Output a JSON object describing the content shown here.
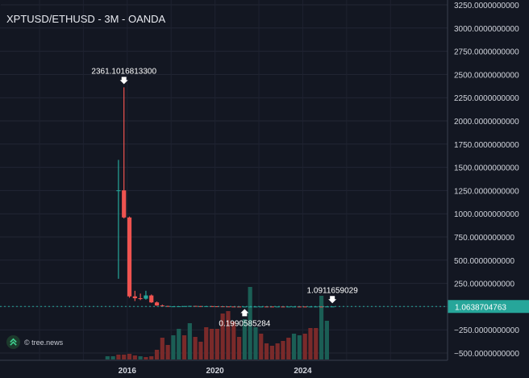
{
  "chart": {
    "title": "XPTUSD/ETHUSD - 3M - OANDA",
    "watermark": "tree.news",
    "watermark_icon": "tree-news-logo-icon",
    "current_price_label": "1.0638704763",
    "annotations": {
      "high": "2361.1016813300",
      "low": "0.1990585284",
      "recent_high": "1.0911659029"
    },
    "y_ticks": [
      "3250.0000000000",
      "3000.0000000000",
      "2750.0000000000",
      "2500.0000000000",
      "2250.0000000000",
      "2000.0000000000",
      "1750.0000000000",
      "1500.0000000000",
      "1250.0000000000",
      "1000.0000000000",
      "750.0000000000",
      "500.0000000000",
      "250.0000000000",
      "0.0000000000",
      "−250.0000000000",
      "−500.0000000000"
    ],
    "x_ticks": [
      "2016",
      "2020",
      "2024"
    ]
  },
  "chart_data": {
    "type": "candlestick",
    "title": "XPTUSD/ETHUSD - 3M - OANDA",
    "ylim": [
      -580,
      3250
    ],
    "grid": true,
    "x_range": [
      2010.2,
      2030.6
    ],
    "last_price": 1.0638704763,
    "candles": [
      {
        "t": 2015.6,
        "o": 1252,
        "h": 1580,
        "l": 300,
        "c": 1252
      },
      {
        "t": 2015.85,
        "o": 1252,
        "h": 2361,
        "l": 950,
        "c": 960
      },
      {
        "t": 2016.1,
        "o": 960,
        "h": 970,
        "l": 95,
        "c": 110
      },
      {
        "t": 2016.35,
        "o": 110,
        "h": 170,
        "l": 60,
        "c": 90
      },
      {
        "t": 2016.6,
        "o": 90,
        "h": 140,
        "l": 70,
        "c": 85
      },
      {
        "t": 2016.85,
        "o": 85,
        "h": 170,
        "l": 75,
        "c": 120
      },
      {
        "t": 2017.1,
        "o": 120,
        "h": 130,
        "l": 40,
        "c": 45
      },
      {
        "t": 2017.35,
        "o": 45,
        "h": 55,
        "l": 8,
        "c": 12
      },
      {
        "t": 2017.6,
        "o": 12,
        "h": 22,
        "l": 3,
        "c": 6
      },
      {
        "t": 2017.85,
        "o": 6,
        "h": 9,
        "l": 1.5,
        "c": 2
      },
      {
        "t": 2018.1,
        "o": 2,
        "h": 3,
        "l": 1.2,
        "c": 2.5
      },
      {
        "t": 2018.35,
        "o": 2.5,
        "h": 4,
        "l": 2,
        "c": 3
      },
      {
        "t": 2018.6,
        "o": 3,
        "h": 6,
        "l": 2.5,
        "c": 5
      },
      {
        "t": 2018.85,
        "o": 5,
        "h": 9,
        "l": 4,
        "c": 7
      },
      {
        "t": 2019.1,
        "o": 7,
        "h": 8,
        "l": 4,
        "c": 5
      },
      {
        "t": 2019.35,
        "o": 5,
        "h": 6,
        "l": 3,
        "c": 3.5
      },
      {
        "t": 2019.6,
        "o": 3.5,
        "h": 5,
        "l": 3,
        "c": 4.5
      },
      {
        "t": 2019.85,
        "o": 4.5,
        "h": 6,
        "l": 3,
        "c": 3.2
      },
      {
        "t": 2020.1,
        "o": 3.2,
        "h": 4,
        "l": 2,
        "c": 2.5
      },
      {
        "t": 2020.35,
        "o": 2.5,
        "h": 3,
        "l": 1.2,
        "c": 1.5
      },
      {
        "t": 2020.6,
        "o": 1.5,
        "h": 1.8,
        "l": 0.5,
        "c": 0.6
      },
      {
        "t": 2020.85,
        "o": 0.6,
        "h": 0.8,
        "l": 0.3,
        "c": 0.35
      },
      {
        "t": 2021.1,
        "o": 0.35,
        "h": 0.4,
        "l": 0.2,
        "c": 0.25
      },
      {
        "t": 2021.35,
        "o": 0.25,
        "h": 0.3,
        "l": 0.199,
        "c": 0.28
      },
      {
        "t": 2021.6,
        "o": 0.28,
        "h": 0.35,
        "l": 0.22,
        "c": 0.3
      },
      {
        "t": 2021.85,
        "o": 0.3,
        "h": 0.5,
        "l": 0.25,
        "c": 0.4
      },
      {
        "t": 2022.1,
        "o": 0.4,
        "h": 0.7,
        "l": 0.35,
        "c": 0.6
      },
      {
        "t": 2022.35,
        "o": 0.6,
        "h": 0.8,
        "l": 0.5,
        "c": 0.55
      },
      {
        "t": 2022.6,
        "o": 0.55,
        "h": 0.7,
        "l": 0.45,
        "c": 0.5
      },
      {
        "t": 2022.85,
        "o": 0.5,
        "h": 0.6,
        "l": 0.45,
        "c": 0.55
      },
      {
        "t": 2023.1,
        "o": 0.55,
        "h": 0.6,
        "l": 0.4,
        "c": 0.45
      },
      {
        "t": 2023.35,
        "o": 0.45,
        "h": 0.55,
        "l": 0.4,
        "c": 0.5
      },
      {
        "t": 2023.6,
        "o": 0.5,
        "h": 0.6,
        "l": 0.45,
        "c": 0.55
      },
      {
        "t": 2023.85,
        "o": 0.55,
        "h": 0.65,
        "l": 0.45,
        "c": 0.5
      },
      {
        "t": 2024.1,
        "o": 0.5,
        "h": 0.6,
        "l": 0.4,
        "c": 0.45
      },
      {
        "t": 2024.35,
        "o": 0.45,
        "h": 0.6,
        "l": 0.4,
        "c": 0.55
      },
      {
        "t": 2024.6,
        "o": 0.55,
        "h": 0.75,
        "l": 0.5,
        "c": 0.7
      },
      {
        "t": 2024.85,
        "o": 0.7,
        "h": 0.8,
        "l": 0.6,
        "c": 0.65
      },
      {
        "t": 2025.1,
        "o": 0.65,
        "h": 1.0,
        "l": 0.6,
        "c": 0.95
      },
      {
        "t": 2025.35,
        "o": 0.95,
        "h": 1.09,
        "l": 0.9,
        "c": 1.06
      }
    ],
    "volume_bars": [
      {
        "t": 2015.1,
        "v": 4,
        "color": "#1b5e55"
      },
      {
        "t": 2015.35,
        "v": 4,
        "color": "#1b5e55"
      },
      {
        "t": 2015.6,
        "v": 6,
        "color": "#7a2a2a"
      },
      {
        "t": 2015.85,
        "v": 6,
        "color": "#7a2a2a"
      },
      {
        "t": 2016.1,
        "v": 7,
        "color": "#7a2a2a"
      },
      {
        "t": 2016.35,
        "v": 5,
        "color": "#7a2a2a"
      },
      {
        "t": 2016.6,
        "v": 4,
        "color": "#1b5e55"
      },
      {
        "t": 2016.85,
        "v": 3,
        "color": "#7a2a2a"
      },
      {
        "t": 2017.1,
        "v": 4,
        "color": "#7a2a2a"
      },
      {
        "t": 2017.35,
        "v": 12,
        "color": "#7a2a2a"
      },
      {
        "t": 2017.6,
        "v": 27,
        "color": "#7a2a2a"
      },
      {
        "t": 2017.85,
        "v": 18,
        "color": "#7a2a2a"
      },
      {
        "t": 2018.1,
        "v": 30,
        "color": "#1b5e55"
      },
      {
        "t": 2018.35,
        "v": 38,
        "color": "#1b5e55"
      },
      {
        "t": 2018.6,
        "v": 30,
        "color": "#7a2a2a"
      },
      {
        "t": 2018.85,
        "v": 45,
        "color": "#1b5e55"
      },
      {
        "t": 2019.1,
        "v": 28,
        "color": "#7a2a2a"
      },
      {
        "t": 2019.35,
        "v": 22,
        "color": "#7a2a2a"
      },
      {
        "t": 2019.6,
        "v": 40,
        "color": "#7a2a2a"
      },
      {
        "t": 2019.85,
        "v": 38,
        "color": "#7a2a2a"
      },
      {
        "t": 2020.1,
        "v": 38,
        "color": "#7a2a2a"
      },
      {
        "t": 2020.35,
        "v": 57,
        "color": "#7a2a2a"
      },
      {
        "t": 2020.6,
        "v": 60,
        "color": "#7a2a2a"
      },
      {
        "t": 2020.85,
        "v": 47,
        "color": "#7a2a2a"
      },
      {
        "t": 2021.1,
        "v": 28,
        "color": "#7a2a2a"
      },
      {
        "t": 2021.35,
        "v": 50,
        "color": "#1b5e55"
      },
      {
        "t": 2021.6,
        "v": 90,
        "color": "#1b5e55"
      },
      {
        "t": 2021.85,
        "v": 40,
        "color": "#1b5e55"
      },
      {
        "t": 2022.1,
        "v": 32,
        "color": "#7a2a2a"
      },
      {
        "t": 2022.35,
        "v": 20,
        "color": "#7a2a2a"
      },
      {
        "t": 2022.6,
        "v": 17,
        "color": "#7a2a2a"
      },
      {
        "t": 2022.85,
        "v": 20,
        "color": "#7a2a2a"
      },
      {
        "t": 2023.1,
        "v": 23,
        "color": "#7a2a2a"
      },
      {
        "t": 2023.35,
        "v": 27,
        "color": "#7a2a2a"
      },
      {
        "t": 2023.6,
        "v": 32,
        "color": "#1b5e55"
      },
      {
        "t": 2023.85,
        "v": 30,
        "color": "#1b5e55"
      },
      {
        "t": 2024.1,
        "v": 32,
        "color": "#7a2a2a"
      },
      {
        "t": 2024.35,
        "v": 39,
        "color": "#7a2a2a"
      },
      {
        "t": 2024.6,
        "v": 39,
        "color": "#7a2a2a"
      },
      {
        "t": 2024.85,
        "v": 79,
        "color": "#1b5e55"
      },
      {
        "t": 2025.1,
        "v": 48,
        "color": "#1b5e55"
      }
    ],
    "volume_max": 90
  }
}
